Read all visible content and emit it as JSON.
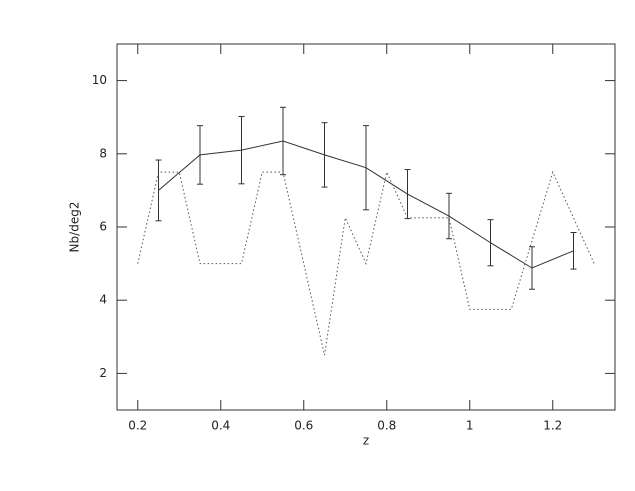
{
  "chart_data": {
    "type": "line",
    "x_label": "z",
    "y_label": "Nb/deg2",
    "xlim": [
      0.15,
      1.35
    ],
    "ylim": [
      1,
      11
    ],
    "xticks": [
      0.2,
      0.4,
      0.6,
      0.8,
      1,
      1.2
    ],
    "yticks": [
      2,
      4,
      6,
      8,
      10
    ],
    "series": [
      {
        "color": "#333333",
        "dash": "solid",
        "x": [
          0.25,
          0.35,
          0.45,
          0.55,
          0.65,
          0.75,
          0.85,
          0.95,
          1.05,
          1.15,
          1.25
        ],
        "values": [
          7.0,
          7.97,
          8.1,
          8.35,
          7.97,
          7.62,
          6.9,
          6.3,
          5.57,
          4.88,
          5.35
        ],
        "errors": [
          0.83,
          0.8,
          0.92,
          0.92,
          0.88,
          1.15,
          0.67,
          0.62,
          0.63,
          0.58,
          0.5
        ]
      },
      {
        "color": "#555555",
        "dash": "dotted",
        "x": [
          0.2,
          0.25,
          0.3,
          0.35,
          0.45,
          0.5,
          0.55,
          0.65,
          0.7,
          0.75,
          0.8,
          0.85,
          0.95,
          1.0,
          1.1,
          1.2,
          1.3
        ],
        "values": [
          5.0,
          7.5,
          7.5,
          5.0,
          5.0,
          7.5,
          7.5,
          2.5,
          6.25,
          5.0,
          7.5,
          6.25,
          6.25,
          3.75,
          3.75,
          7.5,
          5.0
        ]
      }
    ]
  }
}
